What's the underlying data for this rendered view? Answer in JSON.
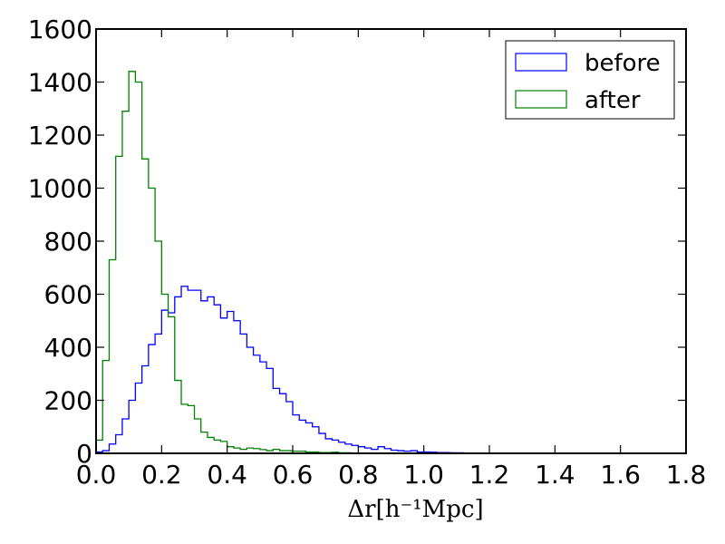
{
  "chart_data": {
    "type": "histogram",
    "title": "",
    "xlabel": "Δr[h⁻¹Mpc]",
    "ylabel": "",
    "xlim": [
      0,
      1.8
    ],
    "ylim": [
      0,
      1600
    ],
    "xticks": [
      0.0,
      0.2,
      0.4,
      0.6,
      0.8,
      1.0,
      1.2,
      1.4,
      1.6,
      1.8
    ],
    "xtick_labels": [
      "0.0",
      "0.2",
      "0.4",
      "0.6",
      "0.8",
      "1.0",
      "1.2",
      "1.4",
      "1.6",
      "1.8"
    ],
    "yticks": [
      0,
      200,
      400,
      600,
      800,
      1000,
      1200,
      1400,
      1600
    ],
    "ytick_labels": [
      "0",
      "200",
      "400",
      "600",
      "800",
      "1000",
      "1200",
      "1400",
      "1600"
    ],
    "grid": false,
    "legend_position": "top-right",
    "bin_width": 0.02,
    "bin_start": 0.0,
    "series": [
      {
        "name": "before",
        "color": "#0000ff",
        "values": [
          5,
          10,
          35,
          70,
          130,
          200,
          265,
          330,
          410,
          450,
          540,
          530,
          590,
          630,
          615,
          615,
          575,
          590,
          560,
          510,
          535,
          500,
          450,
          400,
          370,
          345,
          320,
          245,
          225,
          195,
          145,
          125,
          115,
          100,
          75,
          55,
          50,
          42,
          35,
          30,
          25,
          20,
          15,
          25,
          18,
          12,
          10,
          8,
          10,
          5,
          5,
          4,
          3,
          3,
          2,
          2,
          1,
          1
        ]
      },
      {
        "name": "after",
        "color": "#008000",
        "values": [
          50,
          350,
          730,
          1120,
          1290,
          1440,
          1400,
          1110,
          1000,
          800,
          600,
          515,
          275,
          185,
          180,
          130,
          80,
          60,
          50,
          45,
          25,
          20,
          15,
          20,
          18,
          14,
          10,
          15,
          10,
          10,
          8,
          8,
          5,
          5,
          3,
          3,
          4,
          2,
          2,
          1,
          1,
          1,
          1,
          0,
          0,
          0,
          0,
          0
        ]
      }
    ]
  }
}
